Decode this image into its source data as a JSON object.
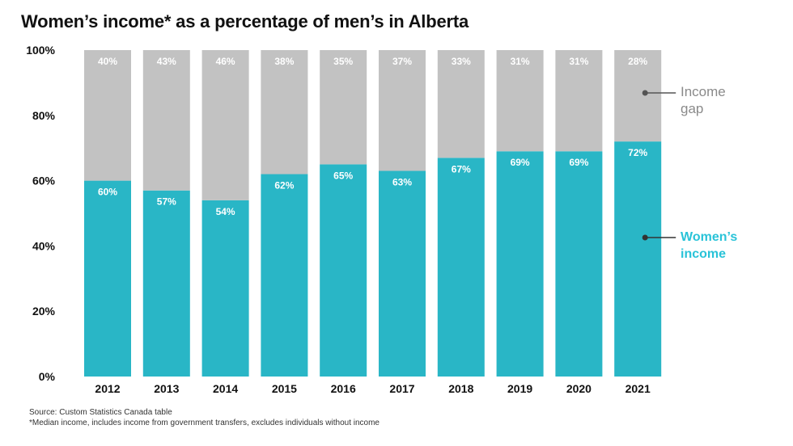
{
  "header": {
    "title": "Women’s income* as a percentage of men’s in Alberta"
  },
  "footer": {
    "source": "Source: Custom Statistics Canada table",
    "note": "*Median income, includes income from government transfers, excludes individuals without income"
  },
  "colors": {
    "women": "#29b6c6",
    "gap": "#c2c2c2",
    "women_label": "#29c3d8",
    "gap_label": "#8a8a8a",
    "bar_text": "#ffffff"
  },
  "chart_data": {
    "type": "bar",
    "stacked": true,
    "categories": [
      "2012",
      "2013",
      "2014",
      "2015",
      "2016",
      "2017",
      "2018",
      "2019",
      "2020",
      "2021"
    ],
    "series": [
      {
        "name": "Women’s income",
        "values": [
          60,
          57,
          54,
          62,
          65,
          63,
          67,
          69,
          69,
          72
        ],
        "labels": [
          "60%",
          "57%",
          "54%",
          "62%",
          "65%",
          "63%",
          "67%",
          "69%",
          "69%",
          "72%"
        ]
      },
      {
        "name": "Income gap",
        "values": [
          40,
          43,
          46,
          38,
          35,
          37,
          33,
          31,
          31,
          28
        ],
        "labels": [
          "40%",
          "43%",
          "46%",
          "38%",
          "35%",
          "37%",
          "33%",
          "31%",
          "31%",
          "28%"
        ]
      }
    ],
    "ylim": [
      0,
      100
    ],
    "yticks": [
      0,
      20,
      40,
      60,
      80,
      100
    ],
    "ytick_labels": [
      "0%",
      "20%",
      "40%",
      "60%",
      "80%",
      "100%"
    ],
    "legend": {
      "placement": "right",
      "gap_lines": [
        "Income",
        "gap"
      ],
      "women_lines": [
        "Women’s",
        "income"
      ]
    },
    "grid": false
  }
}
